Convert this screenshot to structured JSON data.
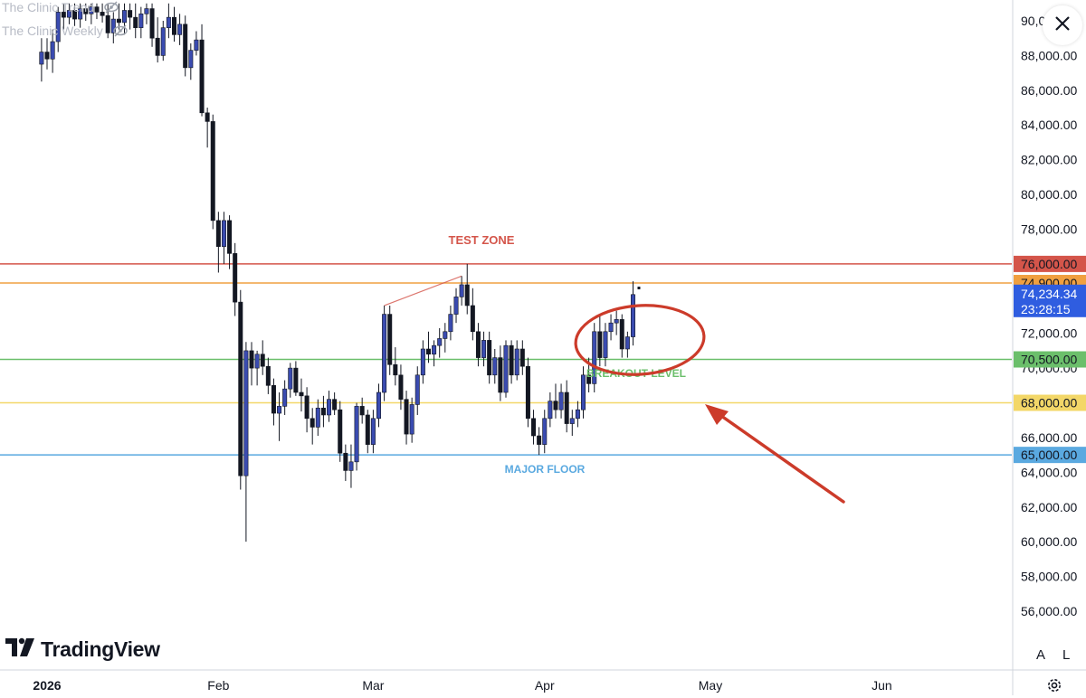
{
  "indicators": [
    {
      "label": "The Clinic Trend",
      "icon": "eye-off-icon"
    },
    {
      "label": "The Clinic Weekly",
      "icon": "eye-off-icon"
    }
  ],
  "brand": {
    "name": "TradingView"
  },
  "controls": {
    "auto_label": "A",
    "log_label": "L",
    "close_icon": "close-icon",
    "settings_icon": "gear-icon"
  },
  "colors": {
    "up": "#3a4bb0",
    "down": "#131722",
    "resistance": "#d4554a",
    "breakout_line": "#f0a040",
    "breakout": "#6bbf6b",
    "support_yellow": "#f3d768",
    "floor": "#5aa9e0",
    "last_price_bg": "#2f5de0",
    "annotation_red": "#cc3b2a"
  },
  "annotations": {
    "test_zone": "TEST ZONE",
    "breakout_level": "BREAKOUT LEVEL",
    "major_floor": "MAJOR FLOOR"
  },
  "chart_data": {
    "type": "candlestick",
    "symbol_timeframe": "daily",
    "ylim": [
      54500,
      91000
    ],
    "y_ticks": [
      56000,
      58000,
      60000,
      62000,
      64000,
      66000,
      68000,
      70000,
      72000,
      74000,
      76000,
      78000,
      80000,
      82000,
      84000,
      86000,
      88000,
      90000
    ],
    "y_tick_labels": [
      "56,000.00",
      "58,000.00",
      "60,000.00",
      "62,000.00",
      "64,000.00",
      "66,000.00",
      "68,000.00",
      "70,000.00",
      "72,000.00",
      "74,000.00",
      "76,000.00",
      "78,000.00",
      "80,000.00",
      "82,000.00",
      "84,000.00",
      "86,000.00",
      "88,000.00",
      "90,000.00"
    ],
    "x_labels": [
      {
        "text": "2026",
        "date": "2026-01-01",
        "bold": true
      },
      {
        "text": "Feb",
        "date": "2026-02-01"
      },
      {
        "text": "Mar",
        "date": "2026-03-01"
      },
      {
        "text": "Apr",
        "date": "2026-04-01"
      },
      {
        "text": "May",
        "date": "2026-05-01"
      },
      {
        "text": "Jun",
        "date": "2026-06-01"
      }
    ],
    "levels": [
      {
        "name": "TEST ZONE",
        "value": 76000,
        "label": "76,000.00",
        "color": "#d4554a"
      },
      {
        "value": 74900,
        "label": "74,900.00",
        "color": "#f0a040"
      },
      {
        "name": "BREAKOUT LEVEL",
        "value": 70500,
        "label": "70,500.00",
        "color": "#6bbf6b"
      },
      {
        "value": 68000,
        "label": "68,000.00",
        "color": "#f3d768"
      },
      {
        "name": "MAJOR FLOOR",
        "value": 65000,
        "label": "65,000.00",
        "color": "#5aa9e0"
      }
    ],
    "last_price": {
      "value": 74234.34,
      "label": "74,234.34",
      "countdown": "23:28:15"
    },
    "candles": [
      {
        "date": "2025-12-31",
        "open": 87500,
        "high": 89000,
        "low": 86500,
        "close": 88200
      },
      {
        "date": "2026-01-01",
        "open": 88200,
        "high": 89000,
        "low": 87200,
        "close": 87800
      },
      {
        "date": "2026-01-02",
        "open": 87800,
        "high": 89500,
        "low": 87000,
        "close": 88800
      },
      {
        "date": "2026-01-03",
        "open": 88800,
        "high": 90800,
        "low": 88200,
        "close": 90500
      },
      {
        "date": "2026-01-04",
        "open": 90500,
        "high": 91000,
        "low": 89500,
        "close": 90200
      },
      {
        "date": "2026-01-05",
        "open": 90200,
        "high": 91000,
        "low": 89800,
        "close": 90600
      },
      {
        "date": "2026-01-06",
        "open": 90600,
        "high": 91000,
        "low": 89700,
        "close": 90100
      },
      {
        "date": "2026-01-07",
        "open": 90100,
        "high": 91000,
        "low": 89600,
        "close": 90700
      },
      {
        "date": "2026-01-08",
        "open": 90700,
        "high": 91000,
        "low": 90000,
        "close": 90400
      },
      {
        "date": "2026-01-09",
        "open": 90400,
        "high": 91000,
        "low": 89800,
        "close": 90800
      },
      {
        "date": "2026-01-10",
        "open": 90800,
        "high": 91000,
        "low": 90100,
        "close": 90500
      },
      {
        "date": "2026-01-11",
        "open": 90500,
        "high": 91000,
        "low": 89900,
        "close": 90300
      },
      {
        "date": "2026-01-12",
        "open": 90300,
        "high": 91000,
        "low": 89000,
        "close": 89300
      },
      {
        "date": "2026-01-13",
        "open": 89300,
        "high": 90500,
        "low": 88700,
        "close": 90100
      },
      {
        "date": "2026-01-14",
        "open": 90100,
        "high": 91000,
        "low": 89500,
        "close": 89900
      },
      {
        "date": "2026-01-15",
        "open": 89900,
        "high": 91000,
        "low": 89200,
        "close": 90600
      },
      {
        "date": "2026-01-16",
        "open": 90600,
        "high": 91000,
        "low": 89500,
        "close": 90200
      },
      {
        "date": "2026-01-17",
        "open": 90200,
        "high": 91000,
        "low": 89000,
        "close": 89600
      },
      {
        "date": "2026-01-18",
        "open": 89600,
        "high": 90800,
        "low": 89000,
        "close": 90400
      },
      {
        "date": "2026-01-19",
        "open": 90400,
        "high": 91000,
        "low": 89800,
        "close": 90700
      },
      {
        "date": "2026-01-20",
        "open": 90700,
        "high": 91000,
        "low": 88500,
        "close": 89000
      },
      {
        "date": "2026-01-21",
        "open": 89000,
        "high": 90200,
        "low": 87600,
        "close": 88000
      },
      {
        "date": "2026-01-22",
        "open": 88000,
        "high": 90000,
        "low": 87700,
        "close": 89600
      },
      {
        "date": "2026-01-23",
        "open": 89600,
        "high": 91000,
        "low": 89000,
        "close": 90200
      },
      {
        "date": "2026-01-24",
        "open": 90200,
        "high": 90800,
        "low": 88800,
        "close": 89200
      },
      {
        "date": "2026-01-25",
        "open": 89200,
        "high": 90400,
        "low": 88600,
        "close": 89800
      },
      {
        "date": "2026-01-26",
        "open": 89800,
        "high": 90300,
        "low": 86800,
        "close": 87300
      },
      {
        "date": "2026-01-27",
        "open": 87300,
        "high": 88700,
        "low": 86600,
        "close": 88300
      },
      {
        "date": "2026-01-28",
        "open": 88300,
        "high": 89400,
        "low": 88000,
        "close": 88900
      },
      {
        "date": "2026-01-29",
        "open": 88900,
        "high": 89800,
        "low": 84500,
        "close": 84700
      },
      {
        "date": "2026-01-30",
        "open": 84700,
        "high": 85000,
        "low": 82700,
        "close": 84200
      },
      {
        "date": "2026-01-31",
        "open": 84200,
        "high": 84600,
        "low": 78000,
        "close": 78500
      },
      {
        "date": "2026-02-01",
        "open": 78500,
        "high": 79000,
        "low": 75500,
        "close": 77000
      },
      {
        "date": "2026-02-02",
        "open": 77000,
        "high": 79000,
        "low": 76000,
        "close": 78500
      },
      {
        "date": "2026-02-03",
        "open": 78500,
        "high": 78800,
        "low": 75700,
        "close": 76600
      },
      {
        "date": "2026-02-04",
        "open": 76600,
        "high": 77200,
        "low": 73000,
        "close": 73800
      },
      {
        "date": "2026-02-05",
        "open": 73800,
        "high": 74500,
        "low": 63000,
        "close": 63800
      },
      {
        "date": "2026-02-06",
        "open": 63800,
        "high": 71500,
        "low": 60000,
        "close": 71000
      },
      {
        "date": "2026-02-07",
        "open": 71000,
        "high": 71500,
        "low": 69000,
        "close": 70000
      },
      {
        "date": "2026-02-08",
        "open": 70000,
        "high": 71000,
        "low": 69000,
        "close": 70800
      },
      {
        "date": "2026-02-09",
        "open": 70800,
        "high": 71600,
        "low": 69600,
        "close": 70100
      },
      {
        "date": "2026-02-10",
        "open": 70100,
        "high": 70600,
        "low": 68500,
        "close": 69000
      },
      {
        "date": "2026-02-11",
        "open": 69000,
        "high": 69400,
        "low": 66700,
        "close": 67400
      },
      {
        "date": "2026-02-12",
        "open": 67400,
        "high": 68600,
        "low": 65800,
        "close": 67800
      },
      {
        "date": "2026-02-13",
        "open": 67800,
        "high": 69300,
        "low": 67300,
        "close": 68800
      },
      {
        "date": "2026-02-14",
        "open": 68800,
        "high": 70300,
        "low": 68300,
        "close": 70000
      },
      {
        "date": "2026-02-15",
        "open": 70000,
        "high": 70400,
        "low": 68400,
        "close": 68600
      },
      {
        "date": "2026-02-16",
        "open": 68600,
        "high": 69400,
        "low": 67500,
        "close": 68400
      },
      {
        "date": "2026-02-17",
        "open": 68400,
        "high": 68900,
        "low": 66300,
        "close": 67100
      },
      {
        "date": "2026-02-18",
        "open": 67100,
        "high": 67700,
        "low": 65600,
        "close": 66600
      },
      {
        "date": "2026-02-19",
        "open": 66600,
        "high": 68200,
        "low": 66100,
        "close": 67700
      },
      {
        "date": "2026-02-20",
        "open": 67700,
        "high": 68400,
        "low": 66600,
        "close": 67300
      },
      {
        "date": "2026-02-21",
        "open": 67300,
        "high": 68700,
        "low": 66900,
        "close": 68200
      },
      {
        "date": "2026-02-22",
        "open": 68200,
        "high": 68600,
        "low": 67300,
        "close": 67600
      },
      {
        "date": "2026-02-23",
        "open": 67600,
        "high": 68100,
        "low": 64600,
        "close": 65100
      },
      {
        "date": "2026-02-24",
        "open": 65100,
        "high": 65600,
        "low": 63500,
        "close": 64100
      },
      {
        "date": "2026-02-25",
        "open": 64100,
        "high": 65600,
        "low": 63100,
        "close": 64600
      },
      {
        "date": "2026-02-26",
        "open": 64600,
        "high": 68000,
        "low": 64100,
        "close": 67800
      },
      {
        "date": "2026-02-27",
        "open": 67800,
        "high": 68300,
        "low": 66800,
        "close": 67300
      },
      {
        "date": "2026-02-28",
        "open": 67300,
        "high": 67600,
        "low": 65100,
        "close": 65600
      },
      {
        "date": "2026-03-01",
        "open": 65600,
        "high": 67600,
        "low": 65100,
        "close": 67100
      },
      {
        "date": "2026-03-02",
        "open": 67100,
        "high": 69100,
        "low": 66600,
        "close": 68600
      },
      {
        "date": "2026-03-03",
        "open": 68600,
        "high": 73600,
        "low": 68100,
        "close": 73100
      },
      {
        "date": "2026-03-04",
        "open": 73100,
        "high": 73600,
        "low": 69600,
        "close": 70200
      },
      {
        "date": "2026-03-05",
        "open": 70200,
        "high": 71200,
        "low": 69000,
        "close": 69600
      },
      {
        "date": "2026-03-06",
        "open": 69600,
        "high": 70200,
        "low": 67600,
        "close": 68200
      },
      {
        "date": "2026-03-07",
        "open": 68200,
        "high": 68700,
        "low": 65600,
        "close": 66200
      },
      {
        "date": "2026-03-08",
        "open": 66200,
        "high": 68300,
        "low": 65700,
        "close": 67900
      },
      {
        "date": "2026-03-09",
        "open": 67900,
        "high": 70100,
        "low": 67300,
        "close": 69600
      },
      {
        "date": "2026-03-10",
        "open": 69600,
        "high": 71600,
        "low": 69100,
        "close": 71100
      },
      {
        "date": "2026-03-11",
        "open": 71100,
        "high": 72100,
        "low": 70300,
        "close": 70800
      },
      {
        "date": "2026-03-12",
        "open": 70800,
        "high": 71600,
        "low": 70100,
        "close": 71300
      },
      {
        "date": "2026-03-13",
        "open": 71300,
        "high": 72300,
        "low": 70600,
        "close": 71700
      },
      {
        "date": "2026-03-14",
        "open": 71700,
        "high": 72600,
        "low": 70900,
        "close": 72100
      },
      {
        "date": "2026-03-15",
        "open": 72100,
        "high": 73600,
        "low": 71600,
        "close": 73100
      },
      {
        "date": "2026-03-16",
        "open": 73100,
        "high": 74600,
        "low": 72600,
        "close": 74100
      },
      {
        "date": "2026-03-17",
        "open": 74100,
        "high": 75300,
        "low": 73600,
        "close": 74800
      },
      {
        "date": "2026-03-18",
        "open": 74800,
        "high": 76000,
        "low": 73100,
        "close": 73600
      },
      {
        "date": "2026-03-19",
        "open": 73600,
        "high": 74600,
        "low": 71600,
        "close": 72100
      },
      {
        "date": "2026-03-20",
        "open": 72100,
        "high": 72600,
        "low": 70100,
        "close": 70600
      },
      {
        "date": "2026-03-21",
        "open": 70600,
        "high": 72100,
        "low": 70100,
        "close": 71600
      },
      {
        "date": "2026-03-22",
        "open": 71600,
        "high": 72100,
        "low": 69100,
        "close": 69600
      },
      {
        "date": "2026-03-23",
        "open": 69600,
        "high": 71100,
        "low": 69100,
        "close": 70600
      },
      {
        "date": "2026-03-24",
        "open": 70600,
        "high": 71300,
        "low": 68100,
        "close": 68600
      },
      {
        "date": "2026-03-25",
        "open": 68600,
        "high": 71600,
        "low": 68300,
        "close": 71300
      },
      {
        "date": "2026-03-26",
        "open": 71300,
        "high": 71600,
        "low": 69100,
        "close": 69600
      },
      {
        "date": "2026-03-27",
        "open": 69600,
        "high": 71600,
        "low": 69300,
        "close": 71100
      },
      {
        "date": "2026-03-28",
        "open": 71100,
        "high": 71600,
        "low": 69600,
        "close": 70100
      },
      {
        "date": "2026-03-29",
        "open": 70100,
        "high": 70600,
        "low": 66600,
        "close": 67100
      },
      {
        "date": "2026-03-30",
        "open": 67100,
        "high": 67600,
        "low": 65600,
        "close": 66100
      },
      {
        "date": "2026-03-31",
        "open": 66100,
        "high": 66600,
        "low": 65000,
        "close": 65600
      },
      {
        "date": "2026-04-01",
        "open": 65600,
        "high": 67600,
        "low": 65100,
        "close": 67100
      },
      {
        "date": "2026-04-02",
        "open": 67100,
        "high": 68600,
        "low": 66600,
        "close": 68100
      },
      {
        "date": "2026-04-03",
        "open": 68100,
        "high": 69100,
        "low": 67100,
        "close": 67600
      },
      {
        "date": "2026-04-04",
        "open": 67600,
        "high": 69100,
        "low": 67100,
        "close": 68600
      },
      {
        "date": "2026-04-05",
        "open": 68600,
        "high": 69300,
        "low": 66300,
        "close": 66800
      },
      {
        "date": "2026-04-06",
        "open": 66800,
        "high": 67600,
        "low": 66100,
        "close": 67100
      },
      {
        "date": "2026-04-07",
        "open": 67100,
        "high": 68100,
        "low": 66600,
        "close": 67600
      },
      {
        "date": "2026-04-08",
        "open": 67600,
        "high": 70100,
        "low": 67100,
        "close": 69600
      },
      {
        "date": "2026-04-09",
        "open": 69600,
        "high": 70600,
        "low": 68600,
        "close": 69100
      },
      {
        "date": "2026-04-10",
        "open": 69100,
        "high": 72600,
        "low": 68600,
        "close": 72100
      },
      {
        "date": "2026-04-11",
        "open": 72100,
        "high": 73100,
        "low": 70100,
        "close": 70600
      },
      {
        "date": "2026-04-12",
        "open": 70600,
        "high": 72600,
        "low": 70100,
        "close": 72100
      },
      {
        "date": "2026-04-13",
        "open": 72100,
        "high": 73100,
        "low": 71600,
        "close": 72600
      },
      {
        "date": "2026-04-14",
        "open": 72600,
        "high": 73300,
        "low": 71900,
        "close": 72800
      },
      {
        "date": "2026-04-15",
        "open": 72800,
        "high": 73100,
        "low": 70600,
        "close": 71100
      },
      {
        "date": "2026-04-16",
        "open": 71100,
        "high": 72100,
        "low": 70600,
        "close": 71800
      },
      {
        "date": "2026-04-17",
        "open": 71800,
        "high": 75000,
        "low": 71300,
        "close": 74234.34
      }
    ]
  }
}
